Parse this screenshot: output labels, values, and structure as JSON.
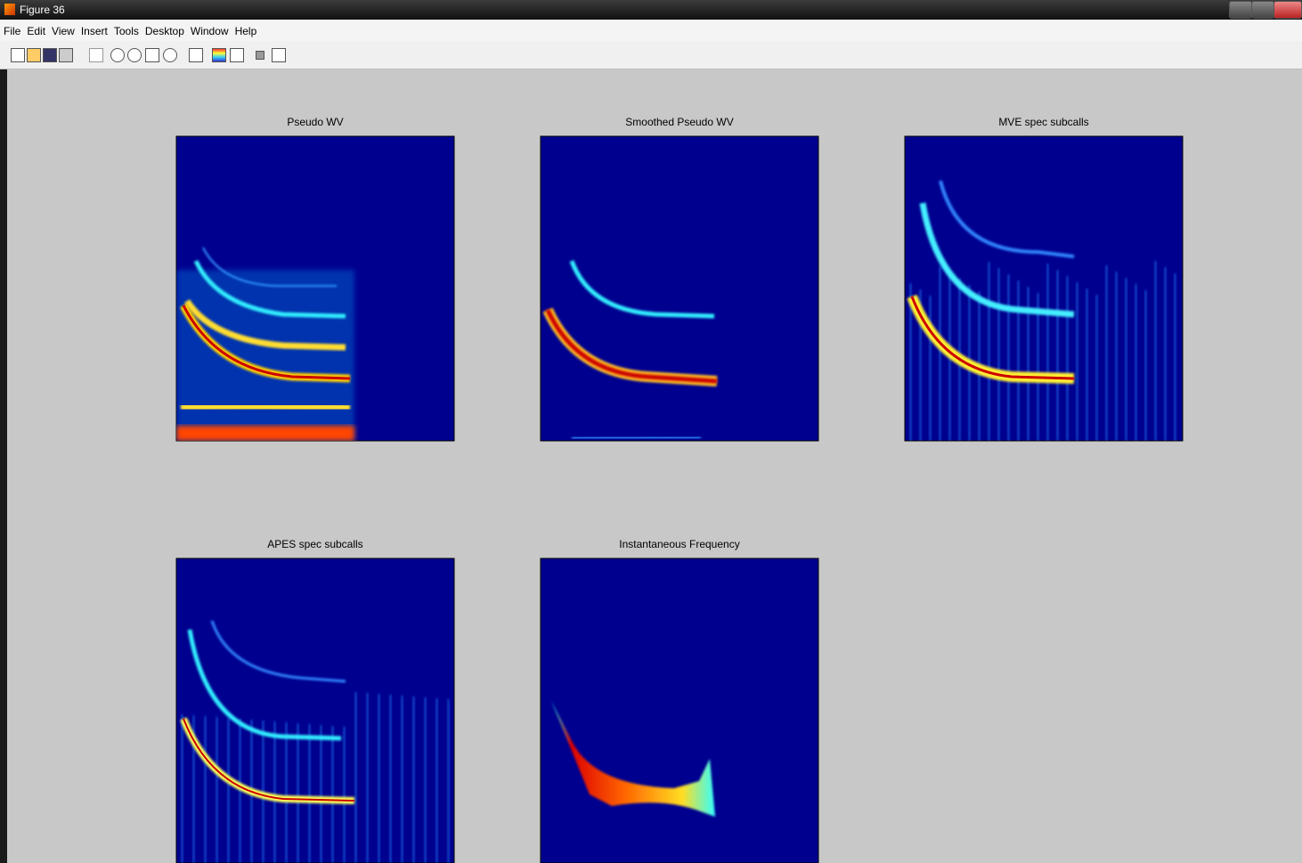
{
  "window": {
    "title": "Figure 36"
  },
  "menu": [
    "File",
    "Edit",
    "View",
    "Insert",
    "Tools",
    "Desktop",
    "Window",
    "Help"
  ],
  "plots": [
    {
      "title": "Pseudo WV"
    },
    {
      "title": "Smoothed Pseudo WV"
    },
    {
      "title": "MVE spec subcalls"
    },
    {
      "title": "APES spec subcalls"
    },
    {
      "title": "Instantaneous Frequency"
    }
  ]
}
